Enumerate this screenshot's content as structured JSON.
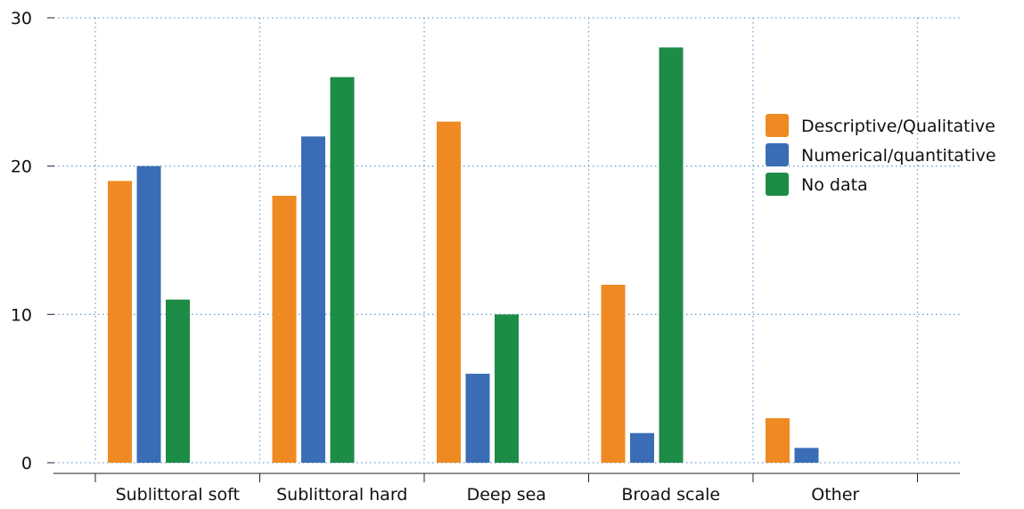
{
  "chart_data": {
    "type": "bar",
    "title": "",
    "xlabel": "",
    "ylabel": "",
    "categories": [
      "Sublittoral soft",
      "Sublittoral hard",
      "Deep sea",
      "Broad scale",
      "Other"
    ],
    "series": [
      {
        "name": "Descriptive/Qualitative",
        "color": "#ef8a22",
        "values": [
          19,
          18,
          23,
          12,
          3
        ]
      },
      {
        "name": "Numerical/quantitative",
        "color": "#3a6db5",
        "values": [
          20,
          22,
          6,
          2,
          1
        ]
      },
      {
        "name": "No data",
        "color": "#1c8c46",
        "values": [
          11,
          26,
          10,
          28,
          0
        ]
      }
    ],
    "y_ticks": [
      0,
      10,
      20,
      30
    ],
    "ylim": [
      0,
      30
    ],
    "grid": true,
    "legend_position": "right"
  }
}
